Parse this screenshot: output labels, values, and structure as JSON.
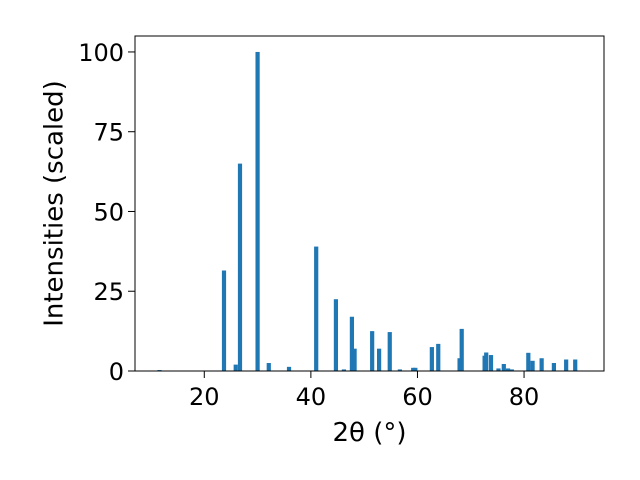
{
  "chart_data": {
    "type": "bar",
    "title": "",
    "xlabel": "2θ (°)",
    "ylabel": "Intensities (scaled)",
    "xlim": [
      7,
      95
    ],
    "ylim": [
      0,
      105
    ],
    "xticks": [
      20,
      40,
      60,
      80
    ],
    "yticks": [
      0,
      25,
      50,
      75,
      100
    ],
    "grid": false,
    "legend": "none",
    "bar_color": "#1f77b4",
    "x": [
      11.6,
      23.7,
      25.9,
      26.7,
      30.0,
      32.1,
      35.9,
      41.0,
      44.7,
      46.2,
      47.7,
      48.2,
      51.5,
      52.8,
      54.8,
      56.7,
      59.2,
      59.6,
      62.7,
      63.9,
      67.9,
      68.3,
      72.6,
      72.9,
      73.8,
      75.2,
      76.2,
      77.0,
      77.7,
      80.8,
      81.6,
      83.3,
      85.6,
      87.9,
      89.6
    ],
    "values": [
      0.3,
      31.5,
      2.0,
      65.0,
      100.0,
      2.5,
      1.3,
      39.0,
      22.5,
      0.5,
      17.0,
      7.0,
      12.5,
      7.0,
      12.2,
      0.5,
      1.0,
      1.0,
      7.5,
      8.5,
      4.0,
      13.2,
      4.8,
      5.8,
      5.0,
      0.8,
      2.2,
      0.8,
      0.5,
      5.7,
      3.2,
      4.0,
      2.5,
      3.6,
      3.6
    ],
    "ytick_labels": [
      "0",
      "25",
      "50",
      "75",
      "100"
    ],
    "xtick_labels": [
      "20",
      "40",
      "60",
      "80"
    ]
  }
}
